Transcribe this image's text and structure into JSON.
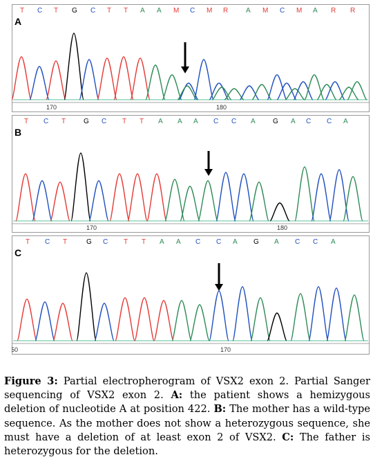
{
  "figure": {
    "panels": [
      {
        "label": "A",
        "bases": [
          "T",
          "C",
          "T",
          "G",
          "C",
          "T",
          "T",
          "A",
          "A",
          "M",
          "C",
          "M",
          "R",
          "A",
          "M",
          "C",
          "M",
          "A",
          "R",
          "R"
        ],
        "position_labels": [
          "170",
          "180"
        ],
        "arrow": true
      },
      {
        "label": "B",
        "bases": [
          "T",
          "C",
          "T",
          "G",
          "C",
          "T",
          "T",
          "A",
          "A",
          "A",
          "C",
          "C",
          "A",
          "G",
          "A",
          "C",
          "C",
          "A"
        ],
        "position_labels": [
          "170",
          "180"
        ],
        "arrow": true
      },
      {
        "label": "C",
        "bases": [
          "T",
          "C",
          "T",
          "G",
          "C",
          "T",
          "T",
          "A",
          "A",
          "C",
          "C",
          "A",
          "G",
          "A",
          "C",
          "C",
          "A"
        ],
        "position_labels": [
          "50",
          "170"
        ],
        "arrow": true
      }
    ],
    "base_colors": {
      "T": "#e53935",
      "C": "#1f4fbf",
      "G": "#000000",
      "A": "#2e8b57",
      "ambiguous": "#e53935"
    },
    "caption": {
      "label": "Figure 3:",
      "text": "Partial electropherogram of VSX2 exon 2. Partial Sanger sequencing of VSX2 exon 2.",
      "a_label": "A:",
      "a_text": "the patient shows a hemizygous deletion of nucleotide A at position 422.",
      "b_label": "B:",
      "b_text": "The mother has a wild-type sequence. As the mother does not show a heterozygous sequence, she must have a deletion of at least exon 2 of VSX2.",
      "c_label": "C:",
      "c_text": "The father is heterozygous for the deletion."
    }
  }
}
